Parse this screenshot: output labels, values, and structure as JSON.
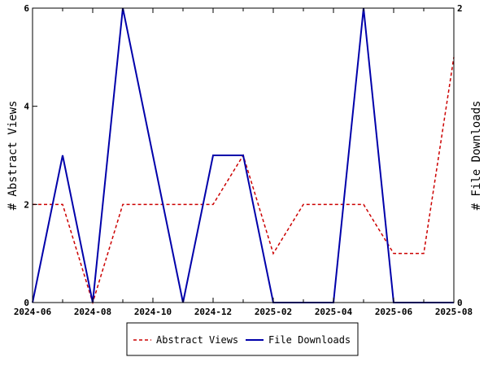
{
  "chart_data": {
    "type": "line",
    "x": [
      "2024-06",
      "2024-07",
      "2024-08",
      "2024-09",
      "2024-10",
      "2024-11",
      "2024-12",
      "2025-01",
      "2025-02",
      "2025-03",
      "2025-04",
      "2025-05",
      "2025-06",
      "2025-07",
      "2025-08"
    ],
    "x_ticks": [
      "2024-06",
      "2024-08",
      "2024-10",
      "2024-12",
      "2025-02",
      "2025-04",
      "2025-06",
      "2025-08"
    ],
    "ylabel": "# Abstract Views",
    "y2label": "# File Downloads",
    "ylim": [
      0,
      6
    ],
    "y2lim": [
      0,
      2
    ],
    "y_ticks": [
      "0",
      "2",
      "4",
      "6"
    ],
    "y2_ticks": [
      "0",
      "2"
    ],
    "grid": false,
    "legend_position": "bottom",
    "series": [
      {
        "name": "Abstract Views",
        "axis": "left",
        "color": "#cc0000",
        "dash": "dashed",
        "values": [
          2,
          2,
          0,
          2,
          2,
          2,
          2,
          3,
          1,
          2,
          2,
          2,
          1,
          1,
          5
        ]
      },
      {
        "name": "File Downloads",
        "axis": "right",
        "color": "#0000aa",
        "dash": "solid",
        "values": [
          0,
          1,
          0,
          2,
          1,
          0,
          1,
          1,
          0,
          0,
          0,
          2,
          0,
          0,
          0
        ]
      }
    ]
  }
}
